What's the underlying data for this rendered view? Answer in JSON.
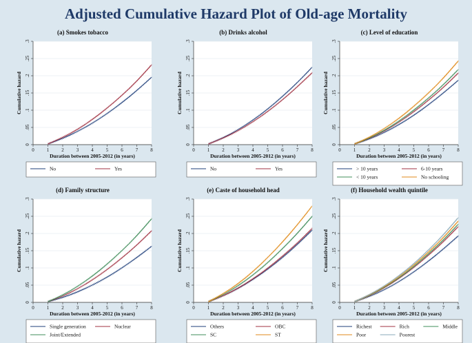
{
  "title": "Adjusted Cumulative Hazard Plot of Old-age Mortality",
  "chart_data": [
    {
      "type": "line",
      "title": "(a) Smokes tobacco",
      "xlabel": "Duration between 2005-2012 (in years)",
      "ylabel": "Cumulative hazard",
      "xlim": [
        0,
        8
      ],
      "ylim": [
        0,
        0.3
      ],
      "xticks": [
        "0",
        "1",
        "2",
        "3",
        "4",
        "5",
        "6",
        "7",
        "8"
      ],
      "yticks": [
        "0",
        ".05",
        ".1",
        ".15",
        ".2",
        ".25",
        ".3"
      ],
      "legend_position": "bottom",
      "legend_columns": 2,
      "series": [
        {
          "name": "No",
          "color": "#1f3f7a",
          "x": [
            1,
            2,
            3,
            4,
            5,
            6,
            7,
            8
          ],
          "y": [
            0.002,
            0.018,
            0.038,
            0.062,
            0.09,
            0.122,
            0.157,
            0.196
          ]
        },
        {
          "name": "Yes",
          "color": "#a03040",
          "x": [
            1,
            2,
            3,
            4,
            5,
            6,
            7,
            8
          ],
          "y": [
            0.002,
            0.021,
            0.044,
            0.073,
            0.106,
            0.143,
            0.184,
            0.232
          ]
        }
      ]
    },
    {
      "type": "line",
      "title": "(b) Drinks alcohol",
      "xlabel": "Duration between 2005-2012 (in years)",
      "ylabel": "Cumulative hazard",
      "xlim": [
        0,
        8
      ],
      "ylim": [
        0,
        0.3
      ],
      "xticks": [
        "0",
        "1",
        "2",
        "3",
        "4",
        "5",
        "6",
        "7",
        "8"
      ],
      "yticks": [
        "0",
        ".05",
        ".1",
        ".15",
        ".2",
        ".25",
        ".3"
      ],
      "legend_position": "bottom",
      "legend_columns": 2,
      "series": [
        {
          "name": "No",
          "color": "#1f3f7a",
          "x": [
            1,
            2,
            3,
            4,
            5,
            6,
            7,
            8
          ],
          "y": [
            0.002,
            0.02,
            0.043,
            0.071,
            0.103,
            0.14,
            0.18,
            0.225
          ]
        },
        {
          "name": "Yes",
          "color": "#a03040",
          "x": [
            1,
            2,
            3,
            4,
            5,
            6,
            7,
            8
          ],
          "y": [
            0.002,
            0.019,
            0.04,
            0.066,
            0.096,
            0.13,
            0.168,
            0.209
          ]
        }
      ]
    },
    {
      "type": "line",
      "title": "(c) Level of education",
      "xlabel": "Duration between 2005-2012 (in years)",
      "ylabel": "Cumulative hazard",
      "xlim": [
        0,
        8
      ],
      "ylim": [
        0,
        0.3
      ],
      "xticks": [
        "0",
        "1",
        "2",
        "3",
        "4",
        "5",
        "6",
        "7",
        "8"
      ],
      "yticks": [
        "0",
        ".05",
        ".1",
        ".15",
        ".2",
        ".25",
        ".3"
      ],
      "legend_position": "bottom",
      "legend_columns": 2,
      "series": [
        {
          "name": "> 10 years",
          "color": "#1f3f7a",
          "x": [
            1,
            2,
            3,
            4,
            5,
            6,
            7,
            8
          ],
          "y": [
            0.002,
            0.016,
            0.035,
            0.058,
            0.085,
            0.116,
            0.15,
            0.187
          ]
        },
        {
          "name": "6-10 years",
          "color": "#a03040",
          "x": [
            1,
            2,
            3,
            4,
            5,
            6,
            7,
            8
          ],
          "y": [
            0.002,
            0.018,
            0.039,
            0.065,
            0.095,
            0.129,
            0.166,
            0.208
          ]
        },
        {
          "name": "< 10 years",
          "color": "#3f8c5a",
          "x": [
            1,
            2,
            3,
            4,
            5,
            6,
            7,
            8
          ],
          "y": [
            0.002,
            0.019,
            0.041,
            0.068,
            0.1,
            0.135,
            0.174,
            0.218
          ]
        },
        {
          "name": "No schooling",
          "color": "#e08a18",
          "x": [
            1,
            2,
            3,
            4,
            5,
            6,
            7,
            8
          ],
          "y": [
            0.002,
            0.021,
            0.046,
            0.076,
            0.111,
            0.15,
            0.193,
            0.243
          ]
        }
      ]
    },
    {
      "type": "line",
      "title": "(d) Family structure",
      "xlabel": "Duration between 2005-2012 (in years)",
      "ylabel": "Cumulative hazard",
      "xlim": [
        0,
        8
      ],
      "ylim": [
        0,
        0.3
      ],
      "xticks": [
        "0",
        "1",
        "2",
        "3",
        "4",
        "5",
        "6",
        "7",
        "8"
      ],
      "yticks": [
        "0",
        ".05",
        ".1",
        ".15",
        ".2",
        ".25",
        ".3"
      ],
      "legend_position": "bottom",
      "legend_columns": 2,
      "series": [
        {
          "name": "Single generation",
          "color": "#1f3f7a",
          "x": [
            1,
            2,
            3,
            4,
            5,
            6,
            7,
            8
          ],
          "y": [
            0.002,
            0.014,
            0.03,
            0.05,
            0.073,
            0.1,
            0.13,
            0.163
          ]
        },
        {
          "name": "Nuclear",
          "color": "#a03040",
          "x": [
            1,
            2,
            3,
            4,
            5,
            6,
            7,
            8
          ],
          "y": [
            0.002,
            0.018,
            0.039,
            0.065,
            0.095,
            0.129,
            0.166,
            0.208
          ]
        },
        {
          "name": "Joint/Extended",
          "color": "#3f8c5a",
          "x": [
            1,
            2,
            3,
            4,
            5,
            6,
            7,
            8
          ],
          "y": [
            0.002,
            0.021,
            0.046,
            0.076,
            0.111,
            0.15,
            0.193,
            0.243
          ]
        }
      ]
    },
    {
      "type": "line",
      "title": "(e) Caste of household head",
      "xlabel": "Duration between 2005-2012 (in years)",
      "ylabel": "Cumulative hazard",
      "xlim": [
        0,
        8
      ],
      "ylim": [
        0,
        0.3
      ],
      "xticks": [
        "0",
        "1",
        "2",
        "3",
        "4",
        "5",
        "6",
        "7",
        "8"
      ],
      "yticks": [
        "0",
        ".05",
        ".1",
        ".15",
        ".2",
        ".25",
        ".3"
      ],
      "legend_position": "bottom",
      "legend_columns": 2,
      "series": [
        {
          "name": "Others",
          "color": "#1f3f7a",
          "x": [
            1,
            2,
            3,
            4,
            5,
            6,
            7,
            8
          ],
          "y": [
            0.002,
            0.019,
            0.04,
            0.066,
            0.096,
            0.13,
            0.168,
            0.21
          ]
        },
        {
          "name": "OBC",
          "color": "#a03040",
          "x": [
            1,
            2,
            3,
            4,
            5,
            6,
            7,
            8
          ],
          "y": [
            0.002,
            0.019,
            0.041,
            0.068,
            0.099,
            0.134,
            0.172,
            0.215
          ]
        },
        {
          "name": "SC",
          "color": "#3f8c5a",
          "x": [
            1,
            2,
            3,
            4,
            5,
            6,
            7,
            8
          ],
          "y": [
            0.002,
            0.022,
            0.048,
            0.079,
            0.115,
            0.156,
            0.2,
            0.25
          ]
        },
        {
          "name": "ST",
          "color": "#e08a18",
          "x": [
            1,
            2,
            3,
            4,
            5,
            6,
            7,
            8
          ],
          "y": [
            0.002,
            0.025,
            0.054,
            0.089,
            0.13,
            0.175,
            0.225,
            0.28
          ]
        }
      ]
    },
    {
      "type": "line",
      "title": "(f) Household wealth quintile",
      "xlabel": "Duration between 2005-2012 (in years)",
      "ylabel": "Cumulative hazard",
      "xlim": [
        0,
        8
      ],
      "ylim": [
        0,
        0.3
      ],
      "xticks": [
        "0",
        "1",
        "2",
        "3",
        "4",
        "5",
        "6",
        "7",
        "8"
      ],
      "yticks": [
        "0",
        ".05",
        ".1",
        ".15",
        ".2",
        ".25",
        ".3"
      ],
      "legend_position": "bottom",
      "legend_columns": 3,
      "series": [
        {
          "name": "Richest",
          "color": "#1f3f7a",
          "x": [
            1,
            2,
            3,
            4,
            5,
            6,
            7,
            8
          ],
          "y": [
            0.002,
            0.017,
            0.036,
            0.06,
            0.088,
            0.12,
            0.155,
            0.193
          ]
        },
        {
          "name": "Rich",
          "color": "#a03040",
          "x": [
            1,
            2,
            3,
            4,
            5,
            6,
            7,
            8
          ],
          "y": [
            0.002,
            0.019,
            0.042,
            0.069,
            0.101,
            0.137,
            0.176,
            0.22
          ]
        },
        {
          "name": "Middle",
          "color": "#3f8c5a",
          "x": [
            1,
            2,
            3,
            4,
            5,
            6,
            7,
            8
          ],
          "y": [
            0.002,
            0.02,
            0.043,
            0.071,
            0.104,
            0.141,
            0.181,
            0.227
          ]
        },
        {
          "name": "Poor",
          "color": "#e08a18",
          "x": [
            1,
            2,
            3,
            4,
            5,
            6,
            7,
            8
          ],
          "y": [
            0.002,
            0.021,
            0.045,
            0.074,
            0.108,
            0.146,
            0.188,
            0.236
          ]
        },
        {
          "name": "Poorest",
          "color": "#8aaab8",
          "x": [
            1,
            2,
            3,
            4,
            5,
            6,
            7,
            8
          ],
          "y": [
            0.002,
            0.022,
            0.047,
            0.077,
            0.112,
            0.152,
            0.196,
            0.246
          ]
        }
      ]
    }
  ]
}
